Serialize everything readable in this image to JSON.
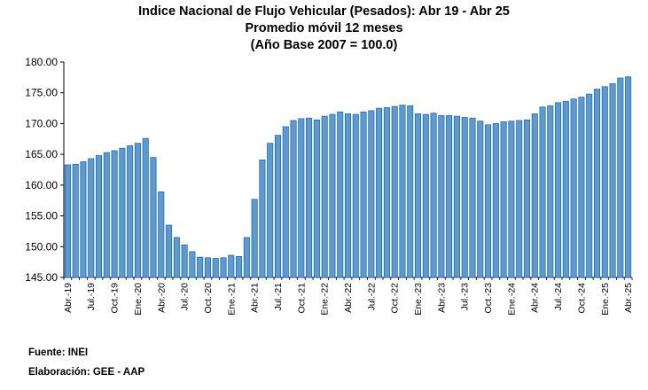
{
  "colors": {
    "bar_fill": "#5b9bd5",
    "bar_edge": "#1f5f9e",
    "axis": "#000000"
  },
  "footer": {
    "source": "Fuente: INEI",
    "elaboration": "Elaboración: GEE - AAP"
  },
  "chart_data": {
    "type": "bar",
    "title": "Indice Nacional de Flujo Vehicular (Pesados): Abr 19 - Abr 25",
    "subtitle": "Promedio móvil 12 meses",
    "subtitle2": "(Año Base 2007 = 100.0)",
    "xlabel": "",
    "ylabel": "",
    "ylim": [
      145.0,
      180.0
    ],
    "yticks": [
      "145.00",
      "150.00",
      "155.00",
      "160.00",
      "165.00",
      "170.00",
      "175.00",
      "180.00"
    ],
    "grid": false,
    "legend": "none",
    "x_tick_labels": [
      "Abr.-19",
      "Jul.-19",
      "Oct.-19",
      "Ene.-20",
      "Abr.-20",
      "Jul.-20",
      "Oct.-20",
      "Ene.-21",
      "Abr.-21",
      "Jul.-21",
      "Oct.-21",
      "Ene.-22",
      "Abr.-22",
      "Jul.-22",
      "Oct.-22",
      "Ene.-23",
      "Abr.-23",
      "Jul.-23",
      "Oct.-23",
      "Ene.-24",
      "Abr.-24",
      "Jul.-24",
      "Oct.-24",
      "Ene.-25",
      "Abr.-25"
    ],
    "categories": [
      "Abr.-19",
      "May.-19",
      "Jun.-19",
      "Jul.-19",
      "Ago.-19",
      "Set.-19",
      "Oct.-19",
      "Nov.-19",
      "Dic.-19",
      "Ene.-20",
      "Feb.-20",
      "Mar.-20",
      "Abr.-20",
      "May.-20",
      "Jun.-20",
      "Jul.-20",
      "Ago.-20",
      "Set.-20",
      "Oct.-20",
      "Nov.-20",
      "Dic.-20",
      "Ene.-21",
      "Feb.-21",
      "Mar.-21",
      "Abr.-21",
      "May.-21",
      "Jun.-21",
      "Jul.-21",
      "Ago.-21",
      "Set.-21",
      "Oct.-21",
      "Nov.-21",
      "Dic.-21",
      "Ene.-22",
      "Feb.-22",
      "Mar.-22",
      "Abr.-22",
      "May.-22",
      "Jun.-22",
      "Jul.-22",
      "Ago.-22",
      "Set.-22",
      "Oct.-22",
      "Nov.-22",
      "Dic.-22",
      "Ene.-23",
      "Feb.-23",
      "Mar.-23",
      "Abr.-23",
      "May.-23",
      "Jun.-23",
      "Jul.-23",
      "Ago.-23",
      "Set.-23",
      "Oct.-23",
      "Nov.-23",
      "Dic.-23",
      "Ene.-24",
      "Feb.-24",
      "Mar.-24",
      "Abr.-24",
      "May.-24",
      "Jun.-24",
      "Jul.-24",
      "Ago.-24",
      "Set.-24",
      "Oct.-24",
      "Nov.-24",
      "Dic.-24",
      "Ene.-25",
      "Feb.-25",
      "Mar.-25",
      "Abr.-25"
    ],
    "series": [
      {
        "name": "Promedio móvil 12 meses",
        "values": [
          163.3,
          163.4,
          163.8,
          164.3,
          164.8,
          165.3,
          165.6,
          166.0,
          166.4,
          166.8,
          167.6,
          164.5,
          158.9,
          153.5,
          151.5,
          150.3,
          149.2,
          148.3,
          148.2,
          148.1,
          148.2,
          148.6,
          148.4,
          151.5,
          157.7,
          164.1,
          166.8,
          168.1,
          169.5,
          170.5,
          170.8,
          170.9,
          170.6,
          171.2,
          171.5,
          171.9,
          171.6,
          171.5,
          171.9,
          172.1,
          172.5,
          172.6,
          172.8,
          173.0,
          172.9,
          171.6,
          171.5,
          171.7,
          171.3,
          171.3,
          171.2,
          171.0,
          170.9,
          170.4,
          169.8,
          170.0,
          170.3,
          170.4,
          170.5,
          170.6,
          171.6,
          172.7,
          172.9,
          173.4,
          173.6,
          174.0,
          174.3,
          174.8,
          175.6,
          176.0,
          176.5,
          177.4,
          177.6
        ]
      }
    ]
  }
}
